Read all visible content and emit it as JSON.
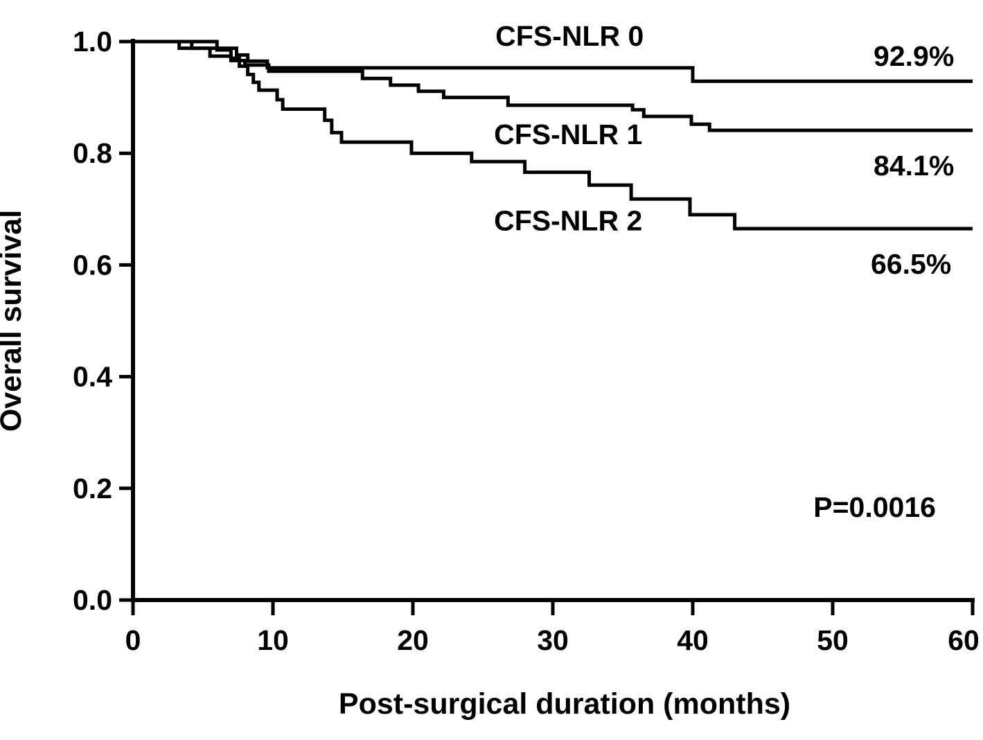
{
  "figure_bg": "#ffffff",
  "line_color": "#000000",
  "chart_data": {
    "type": "line",
    "subtype": "kaplan-meier-step",
    "title": "",
    "xlabel": "Post-surgical duration (months)",
    "ylabel": "Overall survival",
    "xlim": [
      0,
      60
    ],
    "ylim": [
      0.0,
      1.0
    ],
    "grid": false,
    "legend_position": "inline-labels",
    "x_ticks": [
      {
        "label": "0",
        "value": 0
      },
      {
        "label": "10",
        "value": 10
      },
      {
        "label": "20",
        "value": 20
      },
      {
        "label": "30",
        "value": 30
      },
      {
        "label": "40",
        "value": 40
      },
      {
        "label": "50",
        "value": 50
      },
      {
        "label": "60",
        "value": 60
      }
    ],
    "y_ticks": [
      {
        "label": "1.0",
        "value": 1.0
      },
      {
        "label": "0.8",
        "value": 0.8
      },
      {
        "label": "0.6",
        "value": 0.6
      },
      {
        "label": "0.4",
        "value": 0.4
      },
      {
        "label": "0.2",
        "value": 0.2
      },
      {
        "label": "0.0",
        "value": 0.0
      }
    ],
    "p_value": {
      "text": "P=0.0016",
      "x": 53.0,
      "y": 0.166
    },
    "series": [
      {
        "name": "CFS-NLR 0",
        "name_pos": {
          "x": 31.2,
          "y": 1.01
        },
        "final_label": {
          "text": "92.9%",
          "x": 55.8,
          "y": 0.974
        },
        "final_survival": 0.929,
        "start_survival": 1.0,
        "end_time": 60,
        "steps": [
          [
            4.2,
            0.988
          ],
          [
            7.4,
            0.976
          ],
          [
            8.2,
            0.965
          ],
          [
            9.6,
            0.953
          ],
          [
            40.0,
            0.929
          ]
        ]
      },
      {
        "name": "CFS-NLR 1",
        "name_pos": {
          "x": 31.1,
          "y": 0.834
        },
        "final_label": {
          "text": "84.1%",
          "x": 55.8,
          "y": 0.778
        },
        "final_survival": 0.841,
        "start_survival": 1.0,
        "end_time": 60,
        "steps": [
          [
            3.3,
            0.988
          ],
          [
            5.5,
            0.974
          ],
          [
            7.0,
            0.966
          ],
          [
            8.0,
            0.958
          ],
          [
            9.7,
            0.947
          ],
          [
            16.4,
            0.934
          ],
          [
            18.4,
            0.922
          ],
          [
            20.4,
            0.911
          ],
          [
            22.2,
            0.9
          ],
          [
            26.8,
            0.886
          ],
          [
            35.7,
            0.878
          ],
          [
            36.5,
            0.866
          ],
          [
            39.9,
            0.852
          ],
          [
            41.2,
            0.841
          ]
        ]
      },
      {
        "name": "CFS-NLR 2",
        "name_pos": {
          "x": 31.1,
          "y": 0.679
        },
        "final_label": {
          "text": "66.5%",
          "x": 55.6,
          "y": 0.602
        },
        "final_survival": 0.665,
        "start_survival": 1.0,
        "end_time": 60,
        "steps": [
          [
            6.0,
            0.985
          ],
          [
            7.0,
            0.97
          ],
          [
            7.6,
            0.956
          ],
          [
            8.2,
            0.941
          ],
          [
            8.6,
            0.927
          ],
          [
            9.0,
            0.913
          ],
          [
            10.3,
            0.896
          ],
          [
            10.7,
            0.879
          ],
          [
            13.7,
            0.859
          ],
          [
            14.2,
            0.837
          ],
          [
            14.9,
            0.82
          ],
          [
            19.9,
            0.8
          ],
          [
            24.2,
            0.785
          ],
          [
            28.0,
            0.766
          ],
          [
            32.6,
            0.743
          ],
          [
            35.6,
            0.718
          ],
          [
            39.8,
            0.69
          ],
          [
            43.0,
            0.665
          ]
        ]
      }
    ]
  }
}
